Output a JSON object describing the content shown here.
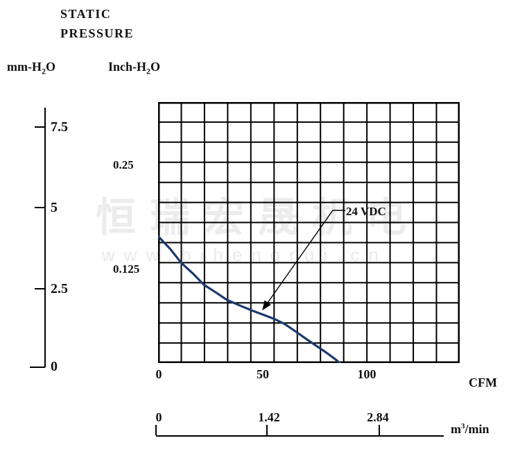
{
  "header": {
    "title_line1": "STATIC",
    "title_line2": "PRESSURE"
  },
  "units": {
    "left": {
      "pre": "mm-H",
      "sub": "2",
      "post": "O"
    },
    "right": {
      "pre": "Inch-H",
      "sub": "2",
      "post": "O"
    }
  },
  "watermark": {
    "cn": "恒瑞宏晟机电",
    "url": "www.bjhengrui.cn"
  },
  "chart_data": {
    "type": "line",
    "title": "STATIC PRESSURE",
    "series": [
      {
        "name": "24 VDC",
        "x_unit": "CFM",
        "y_unit": "mm-H2O",
        "points": [
          [
            0,
            4.08
          ],
          [
            6,
            3.67
          ],
          [
            11,
            3.26
          ],
          [
            17,
            2.9
          ],
          [
            22,
            2.57
          ],
          [
            28,
            2.32
          ],
          [
            33,
            2.1
          ],
          [
            39,
            1.93
          ],
          [
            45,
            1.77
          ],
          [
            50,
            1.65
          ],
          [
            56,
            1.5
          ],
          [
            61,
            1.34
          ],
          [
            66,
            1.12
          ],
          [
            71,
            0.89
          ],
          [
            76,
            0.67
          ],
          [
            81,
            0.45
          ],
          [
            85,
            0.26
          ],
          [
            88,
            0.1
          ]
        ]
      }
    ],
    "x_axis": {
      "label": "CFM",
      "ticks": [
        "0",
        "50",
        "100"
      ],
      "range": [
        0,
        145
      ]
    },
    "x_axis_secondary": {
      "ticks": [
        "0",
        "1.42",
        "2.84"
      ],
      "unit": {
        "pre": "m",
        "sup": "3",
        "post": "/min"
      }
    },
    "y_axis_primary": {
      "label": "mm-H2O",
      "ticks": [
        "7.5",
        "5",
        "2.5",
        "0"
      ],
      "range": [
        0,
        8.26
      ]
    },
    "y_axis_secondary": {
      "label": "Inch-H2O",
      "ticks": [
        "0.25",
        "0.125"
      ]
    },
    "grid": {
      "cols": 13,
      "rows": 13,
      "on": true
    },
    "annotation": {
      "label": "24 VDC"
    },
    "colors": {
      "curve": "#1b3a6e",
      "grid": "#000000",
      "text": "#111111"
    },
    "legend_position": "annotated-inline"
  }
}
